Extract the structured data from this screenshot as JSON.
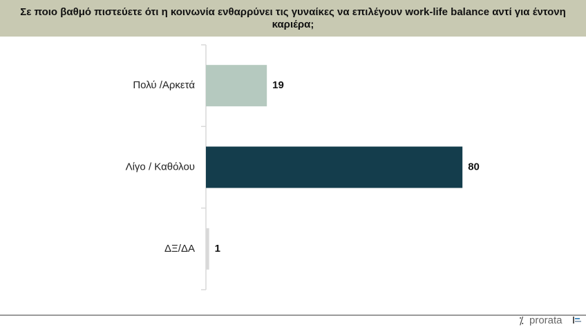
{
  "chart_data": {
    "type": "bar",
    "orientation": "horizontal",
    "title": "Σε ποιο βαθμό πιστεύετε ότι η κοινωνία ενθαρρύνει τις γυναίκες να επιλέγουν work-life balance αντί για έντονη καριέρα;",
    "categories": [
      "Πολύ /Αρκετά",
      "Λίγο / Καθόλου",
      "ΔΞ/ΔΑ"
    ],
    "values": [
      19,
      80,
      1
    ],
    "colors": [
      "#b5c9bf",
      "#143d4c",
      "#d9d9d9"
    ]
  },
  "brand": "prorata"
}
